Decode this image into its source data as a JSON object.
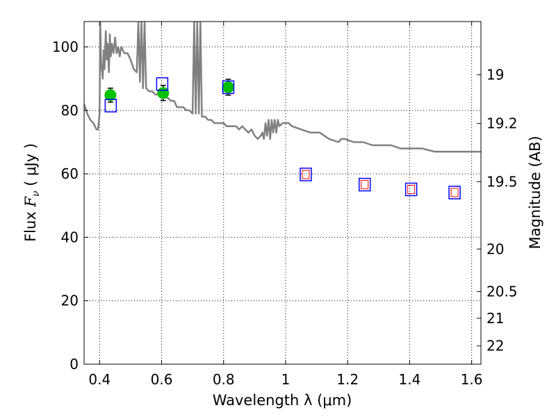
{
  "chart_data": {
    "type": "scatter",
    "title": "",
    "xlabel": "Wavelength  λ (μm)",
    "ylabel": "Flux  F_ν  ( μJy )",
    "ylabel_parts": {
      "prefix": "Flux  ",
      "symbol": "F",
      "subscript": "ν",
      "suffix": "  ( μJy )"
    },
    "y2label": "Magnitude (AB)",
    "xlim": [
      0.35,
      1.63
    ],
    "ylim": [
      0,
      108
    ],
    "grid": true,
    "x_ticks": [
      {
        "value": 0.4,
        "label": "0.4"
      },
      {
        "value": 0.6,
        "label": "0.6"
      },
      {
        "value": 0.8,
        "label": "0.8"
      },
      {
        "value": 1.0,
        "label": "1"
      },
      {
        "value": 1.2,
        "label": "1.2"
      },
      {
        "value": 1.4,
        "label": "1.4"
      },
      {
        "value": 1.6,
        "label": "1.6"
      }
    ],
    "y_ticks": [
      {
        "value": 0,
        "label": "0"
      },
      {
        "value": 20,
        "label": "20"
      },
      {
        "value": 40,
        "label": "40"
      },
      {
        "value": 60,
        "label": "60"
      },
      {
        "value": 80,
        "label": "80"
      },
      {
        "value": 100,
        "label": "100"
      }
    ],
    "y2_ticks": [
      {
        "value": 19,
        "label": "19"
      },
      {
        "value": 19.2,
        "label": "19.2"
      },
      {
        "value": 19.5,
        "label": "19.5"
      },
      {
        "value": 20,
        "label": "20"
      },
      {
        "value": 20.5,
        "label": "20.5"
      },
      {
        "value": 21,
        "label": "21"
      },
      {
        "value": 22,
        "label": "22"
      }
    ],
    "series": [
      {
        "kind": "model_spectrum",
        "color": "#808080",
        "x": [
          0.35,
          0.36,
          0.37,
          0.38,
          0.39,
          0.395,
          0.4,
          0.402,
          0.405,
          0.41,
          0.413,
          0.416,
          0.42,
          0.423,
          0.426,
          0.43,
          0.433,
          0.436,
          0.44,
          0.445,
          0.45,
          0.455,
          0.46,
          0.465,
          0.47,
          0.48,
          0.49,
          0.5,
          0.51,
          0.52,
          0.525,
          0.53,
          0.535,
          0.54,
          0.545,
          0.55,
          0.56,
          0.57,
          0.58,
          0.59,
          0.6,
          0.61,
          0.62,
          0.63,
          0.64,
          0.65,
          0.66,
          0.67,
          0.68,
          0.69,
          0.7,
          0.705,
          0.71,
          0.715,
          0.72,
          0.725,
          0.73,
          0.74,
          0.75,
          0.76,
          0.77,
          0.78,
          0.79,
          0.8,
          0.81,
          0.82,
          0.83,
          0.84,
          0.85,
          0.86,
          0.87,
          0.88,
          0.89,
          0.9,
          0.91,
          0.92,
          0.925,
          0.93,
          0.935,
          0.94,
          0.945,
          0.95,
          0.955,
          0.96,
          0.965,
          0.97,
          0.975,
          0.98,
          0.99,
          1.0,
          1.01,
          1.02,
          1.05,
          1.08,
          1.11,
          1.14,
          1.17,
          1.18,
          1.19,
          1.22,
          1.25,
          1.28,
          1.31,
          1.34,
          1.37,
          1.4,
          1.44,
          1.48,
          1.5,
          1.53,
          1.56,
          1.6,
          1.63
        ],
        "y": [
          82,
          79,
          77,
          76,
          74,
          74,
          79,
          108,
          95,
          90,
          99,
          93,
          105,
          96,
          101,
          92,
          104,
          97,
          101,
          98,
          103,
          98,
          100,
          97,
          100,
          98,
          98,
          96,
          93,
          92,
          108,
          89,
          108,
          87,
          108,
          87,
          86,
          86,
          85,
          85,
          84,
          84,
          84,
          83,
          83,
          81,
          81,
          81,
          80,
          80,
          79,
          108,
          79,
          108,
          79,
          108,
          78,
          78,
          77,
          77,
          76,
          76,
          76,
          76,
          75,
          75,
          75,
          75,
          74,
          75,
          74,
          73,
          74,
          72,
          71,
          72,
          73,
          71,
          76,
          72,
          77,
          71,
          77,
          73,
          77,
          73,
          77,
          75,
          76,
          76,
          76,
          75,
          74,
          73,
          73,
          71,
          70,
          71,
          71,
          70,
          70,
          69,
          69,
          69,
          68,
          68,
          68,
          67,
          67,
          67,
          67,
          67,
          67
        ]
      },
      {
        "kind": "observed_flux",
        "marker": "circle",
        "color": "#00c000",
        "x": [
          0.435,
          0.605,
          0.815
        ],
        "y": [
          84.8,
          85.5,
          87.3
        ],
        "yerr": [
          2.2,
          2.4,
          2.5
        ]
      },
      {
        "kind": "model_band_flux",
        "marker": "square",
        "color": "#0000ff",
        "x": [
          0.436,
          0.602,
          0.815,
          1.065,
          1.255,
          1.405,
          1.545
        ],
        "y": [
          81.5,
          88.3,
          87.3,
          59.8,
          56.6,
          55.1,
          54.1
        ]
      },
      {
        "kind": "inner_marker",
        "marker": "square-small",
        "color": "#ff0000",
        "x": [
          1.065,
          1.255,
          1.405,
          1.545
        ],
        "y": [
          59.8,
          56.6,
          55.1,
          54.1
        ]
      }
    ]
  }
}
